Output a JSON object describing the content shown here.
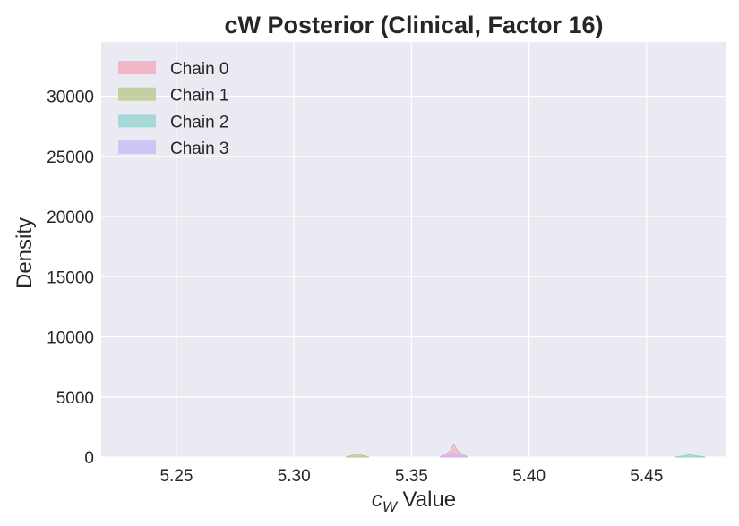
{
  "chart_data": {
    "type": "area",
    "title": "cW Posterior (Clinical, Factor 16)",
    "xlabel": {
      "symbol": "c",
      "subscript": "W",
      "rest": " Value"
    },
    "ylabel": "Density",
    "xlim": [
      5.218,
      5.484
    ],
    "ylim": [
      0,
      34500
    ],
    "x_ticks": [
      5.25,
      5.3,
      5.35,
      5.4,
      5.45
    ],
    "x_tick_labels": [
      "5.25",
      "5.30",
      "5.35",
      "5.40",
      "5.45"
    ],
    "y_ticks": [
      0,
      5000,
      10000,
      15000,
      20000,
      25000,
      30000
    ],
    "y_tick_labels": [
      "0",
      "5000",
      "10000",
      "15000",
      "20000",
      "25000",
      "30000"
    ],
    "grid": true,
    "legend_position": "top-left",
    "series": [
      {
        "name": "Chain 0",
        "color": "#f4a6b7",
        "x": [
          5.362,
          5.3645,
          5.3665,
          5.368,
          5.3695,
          5.3715,
          5.374
        ],
        "y": [
          0,
          260,
          520,
          1100,
          520,
          260,
          0
        ]
      },
      {
        "name": "Chain 1",
        "color": "#b8c58a",
        "x": [
          5.322,
          5.3245,
          5.327,
          5.3295,
          5.332
        ],
        "y": [
          0,
          120,
          280,
          120,
          0
        ]
      },
      {
        "name": "Chain 2",
        "color": "#8ed1cc",
        "x": [
          5.462,
          5.4655,
          5.4685,
          5.4715,
          5.475
        ],
        "y": [
          0,
          90,
          200,
          90,
          0
        ]
      },
      {
        "name": "Chain 3",
        "color": "#c5b8f5",
        "x": [
          5.362,
          5.3655,
          5.368,
          5.3705,
          5.374
        ],
        "y": [
          0,
          150,
          340,
          150,
          0
        ]
      }
    ]
  }
}
